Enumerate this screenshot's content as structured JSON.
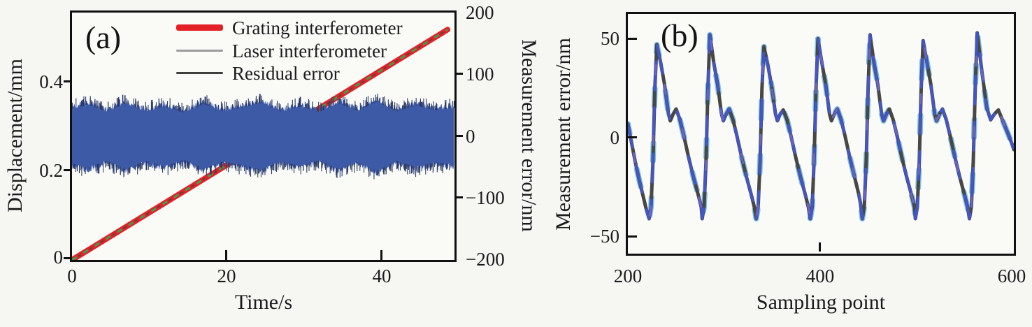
{
  "figure": {
    "background": "#f6f6f3"
  },
  "panel_a": {
    "marker": "(a)",
    "x_title": "Time/s",
    "x_ticks": [
      "0",
      "20",
      "40"
    ],
    "y_left_title": "Displacement/mm",
    "y_left_ticks": [
      "0.4",
      "0.2",
      "0"
    ],
    "y_right_title": "Measurement error/nm",
    "y_right_ticks": [
      "200",
      "100",
      "0",
      "−100",
      "−200"
    ],
    "legend": [
      {
        "label": "Grating interferometer",
        "color": "#e32127"
      },
      {
        "label": "Laser interferometer",
        "color": "#9b9b9b"
      },
      {
        "label": "Residual error",
        "color": "#3f3f3f"
      }
    ]
  },
  "panel_b": {
    "marker": "(b)",
    "x_title": "Sampling point",
    "x_ticks": [
      "200",
      "400",
      "600"
    ],
    "y_title": "Measurement error/nm",
    "y_ticks": [
      "50",
      "0",
      "−50"
    ]
  },
  "chart_data": [
    {
      "type": "line",
      "panel": "a",
      "xlabel": "Time/s",
      "ylabel_left": "Displacement/mm",
      "ylabel_right": "Measurement error/nm",
      "x_range": [
        0,
        49.5
      ],
      "x_ticks": [
        0,
        20,
        40
      ],
      "y_left_range": [
        0,
        0.553
      ],
      "y_left_ticks": [
        0,
        0.2,
        0.4
      ],
      "y_right_range": [
        -200,
        200
      ],
      "y_right_ticks": [
        -200,
        -100,
        0,
        100,
        200
      ],
      "grid": false,
      "legend_position": "upper-center",
      "series": [
        {
          "name": "Grating interferometer",
          "axis": "left",
          "color": "#e32127",
          "style": "thick-line",
          "points_t_mm": [
            [
              0,
              0
            ],
            [
              48.6,
              0.515
            ]
          ]
        },
        {
          "name": "Laser interferometer",
          "axis": "left",
          "color": "#3f9e4f",
          "style": "thin-dashed-inside-grating",
          "points_t_mm": [
            [
              0,
              0
            ],
            [
              48.6,
              0.515
            ]
          ]
        },
        {
          "name": "Residual error",
          "axis": "right",
          "color": "#3d5aa6",
          "style": "noise-band",
          "mean_nm": 0,
          "envelope_t_s": [
            0,
            2,
            4.5,
            7,
            9.5,
            12,
            14.5,
            17,
            19.5,
            22,
            24.5,
            27,
            29.5,
            32,
            34.5,
            37,
            39.5,
            42,
            44.5,
            47,
            49.5
          ],
          "envelope_amp_nm": [
            48,
            55,
            44,
            57,
            44,
            52,
            42,
            56,
            45,
            50,
            58,
            44,
            52,
            43,
            57,
            45,
            60,
            44,
            54,
            46,
            50
          ]
        }
      ]
    },
    {
      "type": "line",
      "panel": "b",
      "xlabel": "Sampling point",
      "ylabel": "Measurement error/nm",
      "x_range": [
        200,
        600
      ],
      "x_ticks": [
        200,
        400,
        600
      ],
      "y_range": [
        -62,
        63
      ],
      "y_ticks": [
        -50,
        0,
        50
      ],
      "grid": false,
      "series_colors": {
        "measured_gray": "#474747",
        "model_blue": "#4356c5",
        "highlight_cyan": "#7fc2e6",
        "accent_violet": "#6b64c8"
      },
      "points": [
        [
          200,
          7
        ],
        [
          204,
          -3
        ],
        [
          208,
          -13
        ],
        [
          212,
          -22
        ],
        [
          216,
          -30
        ],
        [
          219,
          -36
        ],
        [
          222,
          -41
        ],
        [
          224,
          -35
        ],
        [
          226,
          -12
        ],
        [
          228,
          25
        ],
        [
          230,
          47
        ],
        [
          234,
          38
        ],
        [
          238,
          27
        ],
        [
          242,
          12
        ],
        [
          244,
          8.5
        ],
        [
          247,
          12
        ],
        [
          250,
          14.5
        ],
        [
          254,
          9
        ],
        [
          258,
          1
        ],
        [
          263,
          -10
        ],
        [
          268,
          -20
        ],
        [
          273,
          -29
        ],
        [
          276,
          -35
        ],
        [
          277,
          -41
        ],
        [
          279,
          -35
        ],
        [
          281,
          -12
        ],
        [
          283,
          25
        ],
        [
          285,
          52
        ],
        [
          289,
          38
        ],
        [
          293,
          27
        ],
        [
          297,
          12
        ],
        [
          299,
          8.5
        ],
        [
          302,
          12
        ],
        [
          305,
          14.5
        ],
        [
          309,
          9
        ],
        [
          313,
          1
        ],
        [
          318,
          -10
        ],
        [
          323,
          -20
        ],
        [
          328,
          -29
        ],
        [
          331,
          -35
        ],
        [
          333,
          -41
        ],
        [
          335,
          -35
        ],
        [
          337,
          -12
        ],
        [
          339,
          25
        ],
        [
          341,
          46
        ],
        [
          345,
          37
        ],
        [
          349,
          26
        ],
        [
          353,
          12
        ],
        [
          355,
          8.5
        ],
        [
          358,
          12
        ],
        [
          361,
          14
        ],
        [
          365,
          9
        ],
        [
          369,
          1
        ],
        [
          374,
          -10
        ],
        [
          379,
          -20
        ],
        [
          384,
          -29
        ],
        [
          387,
          -35
        ],
        [
          389,
          -41
        ],
        [
          391,
          -35
        ],
        [
          393,
          -12
        ],
        [
          395,
          25
        ],
        [
          397,
          50
        ],
        [
          401,
          38
        ],
        [
          405,
          27
        ],
        [
          409,
          12
        ],
        [
          411,
          8.5
        ],
        [
          414,
          12
        ],
        [
          417,
          14.5
        ],
        [
          421,
          9
        ],
        [
          425,
          1
        ],
        [
          430,
          -10
        ],
        [
          435,
          -20
        ],
        [
          439,
          -28
        ],
        [
          441,
          -33
        ],
        [
          443,
          -41
        ],
        [
          445,
          -35
        ],
        [
          447,
          -12
        ],
        [
          449,
          25
        ],
        [
          451,
          52
        ],
        [
          455,
          38
        ],
        [
          459,
          27
        ],
        [
          463,
          12
        ],
        [
          465,
          8.5
        ],
        [
          468,
          12
        ],
        [
          471,
          14.5
        ],
        [
          475,
          9
        ],
        [
          479,
          1
        ],
        [
          484,
          -10
        ],
        [
          489,
          -20
        ],
        [
          494,
          -29
        ],
        [
          497,
          -35
        ],
        [
          498,
          -41
        ],
        [
          500,
          -35
        ],
        [
          502,
          -12
        ],
        [
          504,
          25
        ],
        [
          506,
          49
        ],
        [
          510,
          38
        ],
        [
          514,
          27
        ],
        [
          518,
          12
        ],
        [
          520,
          8.5
        ],
        [
          523,
          12
        ],
        [
          526,
          14.5
        ],
        [
          530,
          9
        ],
        [
          534,
          1
        ],
        [
          539,
          -10
        ],
        [
          544,
          -20
        ],
        [
          549,
          -29
        ],
        [
          552,
          -35
        ],
        [
          554,
          -41
        ],
        [
          556,
          -35
        ],
        [
          558,
          -12
        ],
        [
          560,
          25
        ],
        [
          562,
          53
        ],
        [
          567,
          33
        ],
        [
          572,
          15
        ],
        [
          576,
          9
        ],
        [
          580,
          12
        ],
        [
          584,
          14
        ],
        [
          589,
          8
        ],
        [
          594,
          2
        ],
        [
          598,
          -3
        ],
        [
          600,
          -6
        ]
      ]
    }
  ]
}
